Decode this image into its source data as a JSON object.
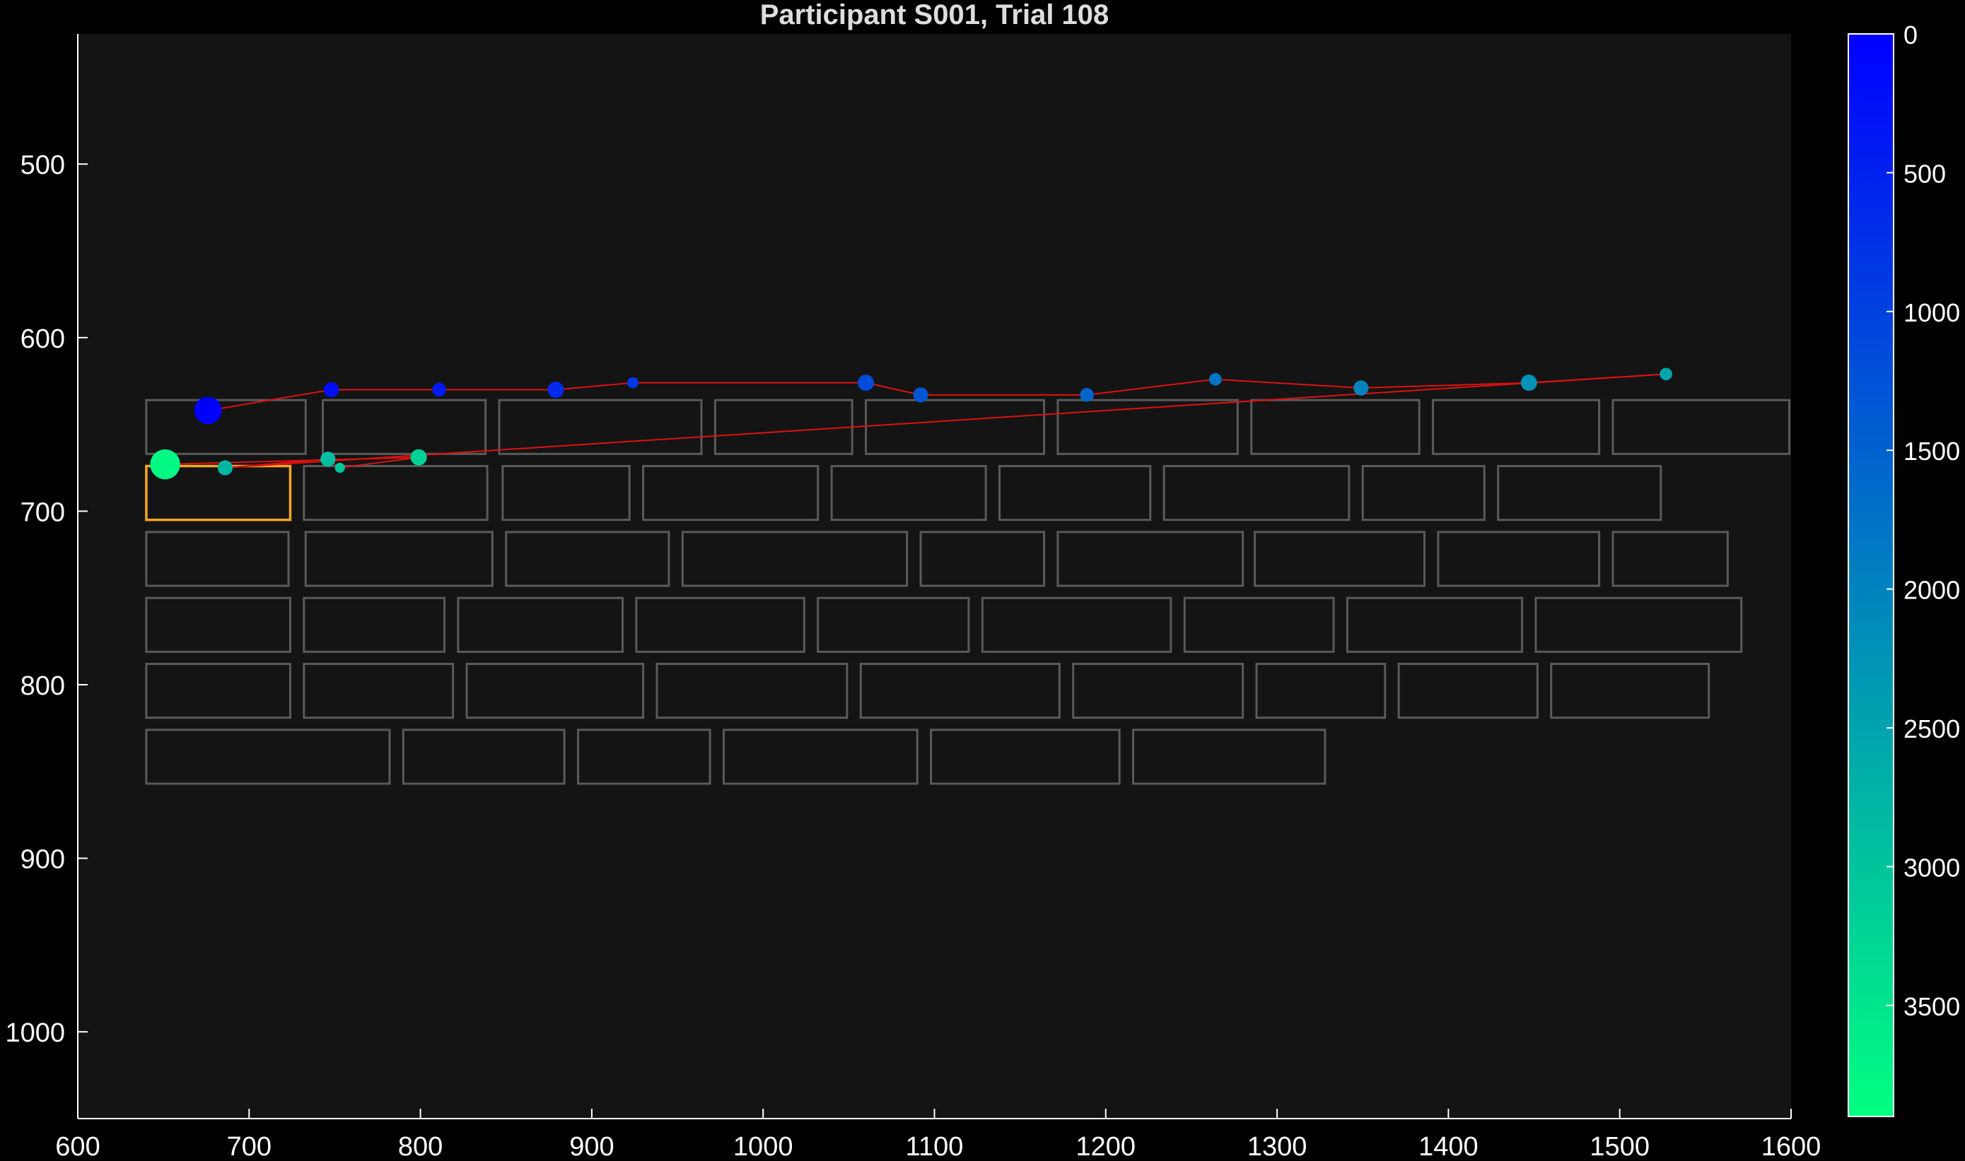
{
  "chart_data": {
    "type": "scatter",
    "title": "Participant S001, Trial 108",
    "xlabel": "",
    "ylabel": "",
    "xlim": [
      600,
      1600
    ],
    "ylim": [
      1050,
      425
    ],
    "y_reversed": true,
    "xticks": [
      600,
      700,
      800,
      900,
      1000,
      1100,
      1200,
      1300,
      1400,
      1500,
      1600
    ],
    "yticks": [
      500,
      600,
      700,
      800,
      900,
      1000
    ],
    "grid": false,
    "colors": {
      "background": "#000000",
      "plot_background": "#141414",
      "axis": "#ffffff",
      "text": "#ffffff",
      "box_stroke": "#5a5a5a",
      "highlight_box": "#f5a623",
      "scanpath": "#dd1111",
      "colormap_start": "#0000ff",
      "colormap_end": "#00ff80"
    },
    "colorbar": {
      "label": "",
      "min": 0,
      "max": 3900,
      "reversed": true,
      "ticks": [
        0,
        500,
        1000,
        1500,
        2000,
        2500,
        3000,
        3500
      ]
    },
    "word_boxes": [
      [
        640,
        636,
        733,
        667
      ],
      [
        743,
        636,
        838,
        667
      ],
      [
        846,
        636,
        964,
        667
      ],
      [
        972,
        636,
        1052,
        667
      ],
      [
        1060,
        636,
        1164,
        667
      ],
      [
        1172,
        636,
        1277,
        667
      ],
      [
        1285,
        636,
        1383,
        667
      ],
      [
        1391,
        636,
        1488,
        667
      ],
      [
        1496,
        636,
        1599,
        667
      ],
      [
        640,
        674,
        724,
        705
      ],
      [
        732,
        674,
        839,
        705
      ],
      [
        848,
        674,
        922,
        705
      ],
      [
        930,
        674,
        1032,
        705
      ],
      [
        1040,
        674,
        1130,
        705
      ],
      [
        1138,
        674,
        1226,
        705
      ],
      [
        1234,
        674,
        1342,
        705
      ],
      [
        1350,
        674,
        1421,
        705
      ],
      [
        1429,
        674,
        1524,
        705
      ],
      [
        640,
        712,
        723,
        743
      ],
      [
        733,
        712,
        842,
        743
      ],
      [
        850,
        712,
        945,
        743
      ],
      [
        953,
        712,
        1084,
        743
      ],
      [
        1092,
        712,
        1164,
        743
      ],
      [
        1172,
        712,
        1280,
        743
      ],
      [
        1287,
        712,
        1386,
        743
      ],
      [
        1394,
        712,
        1488,
        743
      ],
      [
        1496,
        712,
        1563,
        743
      ],
      [
        640,
        750,
        724,
        781
      ],
      [
        732,
        750,
        814,
        781
      ],
      [
        822,
        750,
        918,
        781
      ],
      [
        926,
        750,
        1024,
        781
      ],
      [
        1032,
        750,
        1120,
        781
      ],
      [
        1128,
        750,
        1238,
        781
      ],
      [
        1246,
        750,
        1333,
        781
      ],
      [
        1341,
        750,
        1443,
        781
      ],
      [
        1451,
        750,
        1571,
        781
      ],
      [
        640,
        788,
        724,
        819
      ],
      [
        732,
        788,
        819,
        819
      ],
      [
        827,
        788,
        930,
        819
      ],
      [
        938,
        788,
        1049,
        819
      ],
      [
        1057,
        788,
        1173,
        819
      ],
      [
        1181,
        788,
        1280,
        819
      ],
      [
        1288,
        788,
        1363,
        819
      ],
      [
        1371,
        788,
        1452,
        819
      ],
      [
        1460,
        788,
        1552,
        819
      ],
      [
        640,
        826,
        782,
        857
      ],
      [
        790,
        826,
        884,
        857
      ],
      [
        892,
        826,
        969,
        857
      ],
      [
        977,
        826,
        1090,
        857
      ],
      [
        1098,
        826,
        1208,
        857
      ],
      [
        1216,
        826,
        1328,
        857
      ]
    ],
    "highlight_box": [
      640,
      674,
      724,
      705
    ],
    "fixations": [
      {
        "x": 676,
        "y": 642,
        "t": 0,
        "r": 11
      },
      {
        "x": 748,
        "y": 630,
        "t": 200,
        "r": 6
      },
      {
        "x": 811,
        "y": 630,
        "t": 400,
        "r": 5.5
      },
      {
        "x": 879,
        "y": 630,
        "t": 650,
        "r": 6.5
      },
      {
        "x": 924,
        "y": 626,
        "t": 850,
        "r": 4.5
      },
      {
        "x": 1060,
        "y": 626,
        "t": 1150,
        "r": 6.5
      },
      {
        "x": 1092,
        "y": 633,
        "t": 1300,
        "r": 6
      },
      {
        "x": 1189,
        "y": 633,
        "t": 1550,
        "r": 5.5
      },
      {
        "x": 1264,
        "y": 624,
        "t": 1800,
        "r": 5
      },
      {
        "x": 1349,
        "y": 629,
        "t": 2000,
        "r": 6
      },
      {
        "x": 1447,
        "y": 626,
        "t": 2250,
        "r": 6.5
      },
      {
        "x": 1527,
        "y": 621,
        "t": 2500,
        "r": 5
      },
      {
        "x": 686,
        "y": 675,
        "t": 2800,
        "r": 6
      },
      {
        "x": 746,
        "y": 670,
        "t": 2900,
        "r": 6
      },
      {
        "x": 753,
        "y": 675,
        "t": 3050,
        "r": 4
      },
      {
        "x": 799,
        "y": 669,
        "t": 3200,
        "r": 6.5
      },
      {
        "x": 651,
        "y": 673,
        "t": 3800,
        "r": 12
      }
    ]
  }
}
